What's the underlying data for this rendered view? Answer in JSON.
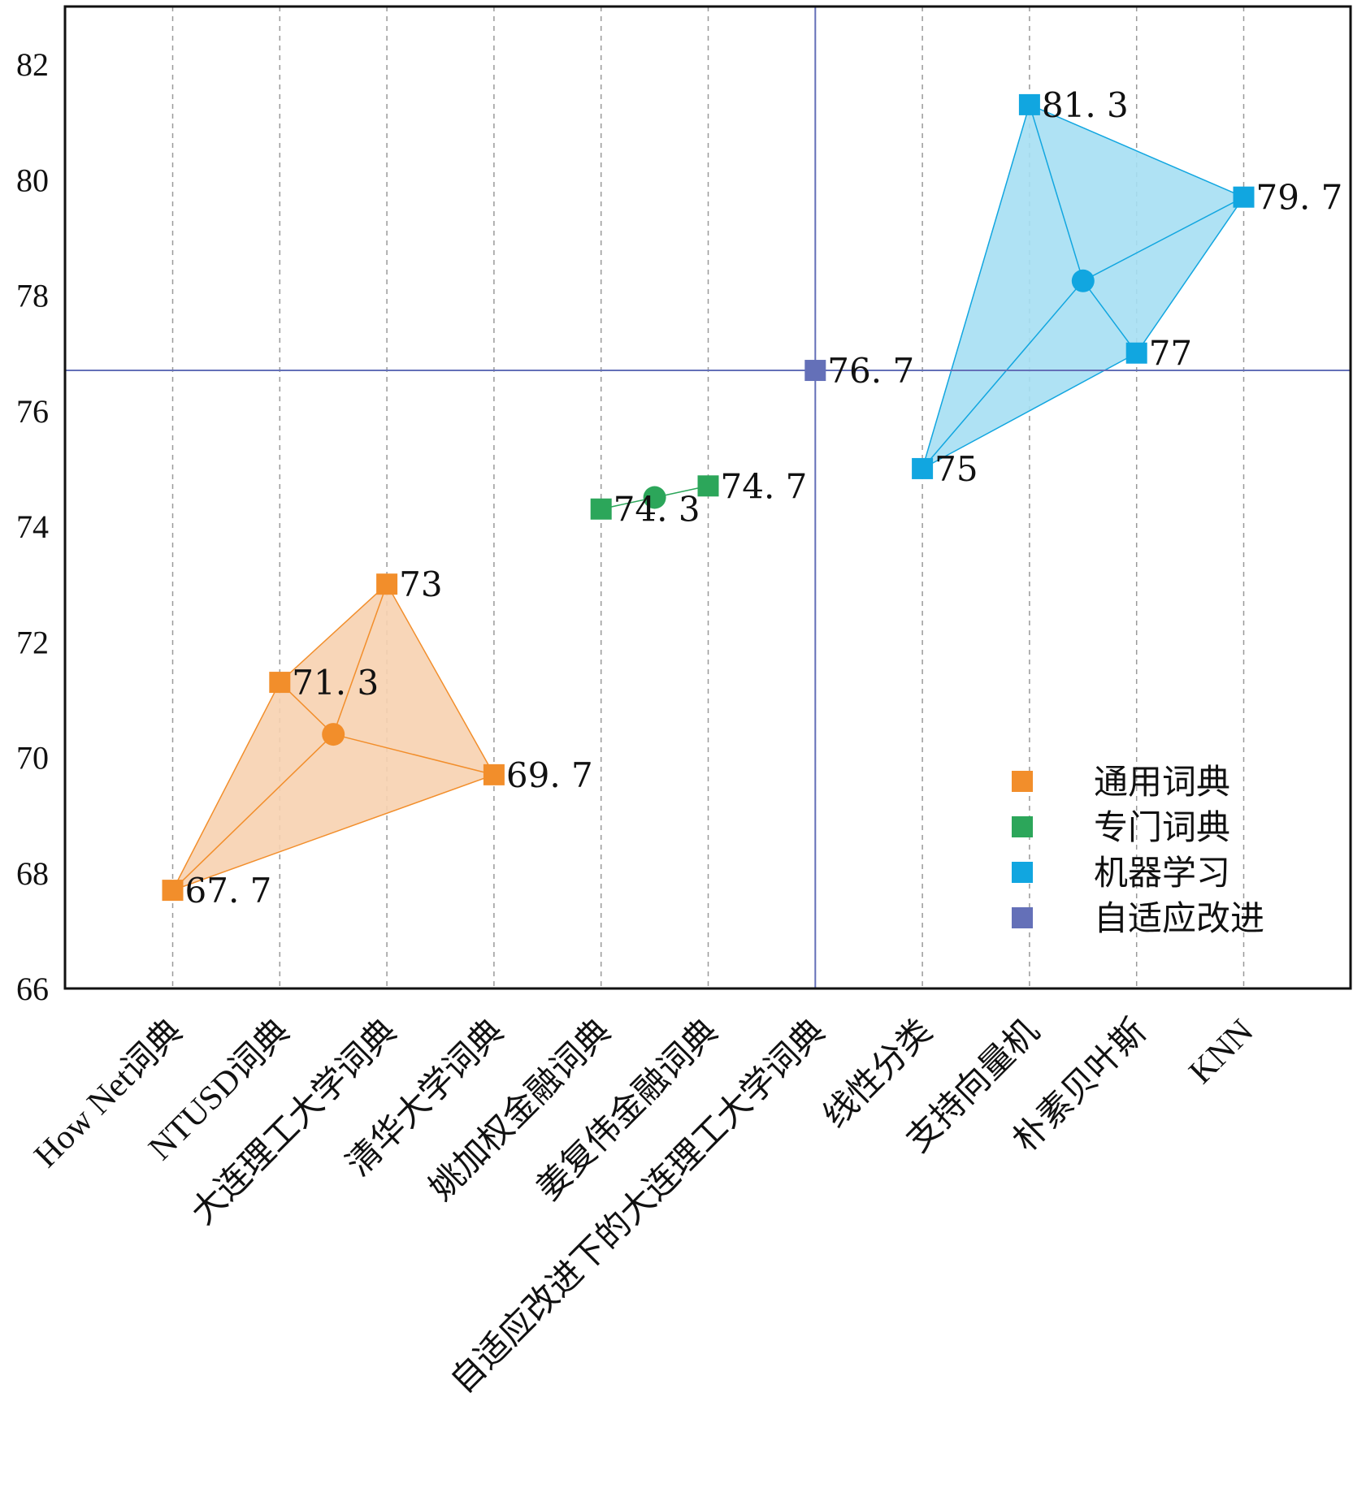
{
  "chart_data": {
    "type": "scatter",
    "title": "",
    "xlabel": "",
    "ylabel": "",
    "ylim": [
      66,
      83
    ],
    "yticks": [
      66,
      68,
      70,
      72,
      74,
      76,
      78,
      80,
      82
    ],
    "grid": "vertical dashed",
    "legend_position": "bottom-right",
    "categories": [
      "How Net词典",
      "NTUSD词典",
      "大连理工大学词典",
      "清华大学词典",
      "姚加权金融词典",
      "姜复伟金融词典",
      "自适应改进下的大连理工大学词典",
      "线性分类",
      "支持向量机",
      "朴素贝叶斯",
      "KNN"
    ],
    "series": [
      {
        "name": "通用词典",
        "color": "#f28e2b",
        "fill": "#f7d2b0",
        "points": [
          {
            "x": "How Net词典",
            "y": 67.7,
            "label": "67. 7"
          },
          {
            "x": "NTUSD词典",
            "y": 71.3,
            "label": "71. 3"
          },
          {
            "x": "大连理工大学词典",
            "y": 73,
            "label": "73"
          },
          {
            "x": "清华大学词典",
            "y": 69.7,
            "label": "69. 7"
          }
        ],
        "hull": [
          "How Net词典",
          "NTUSD词典",
          "大连理工大学词典",
          "清华大学词典"
        ],
        "centroid": {
          "x": 1.5,
          "y": 70.4
        }
      },
      {
        "name": "专门词典",
        "color": "#2ca65a",
        "fill": "#2ca65a",
        "points": [
          {
            "x": "姚加权金融词典",
            "y": 74.3,
            "label": "74. 3"
          },
          {
            "x": "姜复伟金融词典",
            "y": 74.7,
            "label": "74. 7"
          }
        ],
        "hull": [
          "姚加权金融词典",
          "姜复伟金融词典"
        ],
        "centroid": {
          "x": 4.5,
          "y": 74.5
        }
      },
      {
        "name": "机器学习",
        "color": "#11a6e0",
        "fill": "#a6dff3",
        "points": [
          {
            "x": "线性分类",
            "y": 75,
            "label": "75"
          },
          {
            "x": "支持向量机",
            "y": 81.3,
            "label": "81. 3"
          },
          {
            "x": "朴素贝叶斯",
            "y": 77,
            "label": "77"
          },
          {
            "x": "KNN",
            "y": 79.7,
            "label": "79. 7"
          }
        ],
        "hull": [
          "线性分类",
          "支持向量机",
          "KNN",
          "朴素贝叶斯"
        ],
        "centroid": {
          "x": 8.5,
          "y": 78.25
        }
      },
      {
        "name": "自适应改进",
        "color": "#6470b8",
        "fill": "#6470b8",
        "points": [
          {
            "x": "自适应改进下的大连理工大学词典",
            "y": 76.7,
            "label": "76. 7"
          }
        ],
        "hull": [],
        "centroid": null
      }
    ],
    "reference_lines": {
      "x_category": "自适应改进下的大连理工大学词典",
      "y": 76.7,
      "color": "#6470b8"
    }
  }
}
